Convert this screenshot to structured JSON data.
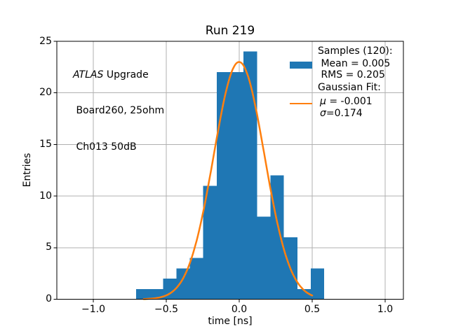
{
  "chart_data": {
    "type": "histogram",
    "title": "Run 219",
    "xlabel": "time [ns]",
    "ylabel": "Entries",
    "xlim": [
      -1.25,
      1.125
    ],
    "ylim": [
      0,
      25
    ],
    "grid": true,
    "x_ticks": {
      "values": [
        -1.0,
        -0.5,
        0.0,
        0.5,
        1.0
      ],
      "labels": [
        "−1.0",
        "−0.5",
        "0.0",
        "0.5",
        "1.0"
      ]
    },
    "y_ticks": {
      "values": [
        0,
        5,
        10,
        15,
        20,
        25
      ],
      "labels": [
        "0",
        "5",
        "10",
        "15",
        "20",
        "25"
      ]
    },
    "colors": {
      "bars": "#1f77b4",
      "fit_line": "#ff7f0e",
      "grid": "#b0b0b0",
      "axes": "#000000"
    },
    "histogram": {
      "bin_start": -0.707,
      "bin_width": 0.0921,
      "counts": [
        1,
        1,
        2,
        3,
        4,
        11,
        22,
        22,
        24,
        8,
        12,
        6,
        1,
        3
      ],
      "n_samples": 120,
      "mean": 0.005,
      "rms": 0.205
    },
    "gaussian_fit": {
      "amplitude": 23.0,
      "mu": -0.001,
      "sigma": 0.174,
      "x_start": -0.655,
      "x_end": 0.5
    }
  },
  "title": "Run 219",
  "annotation": {
    "line1_italic": "ATLAS",
    "line1_rest": " Upgrade",
    "line2": " Board260, 25ohm",
    "line3": " Ch013 50dB"
  },
  "legend": {
    "samples_header": "Samples (120):",
    "mean_label": " Mean = 0.005",
    "rms_label": " RMS = 0.205",
    "fit_header": "Gaussian Fit:",
    "mu_symbol": "μ",
    "mu_value": " = -0.001",
    "sigma_symbol": "σ",
    "sigma_value": "=0.174"
  }
}
